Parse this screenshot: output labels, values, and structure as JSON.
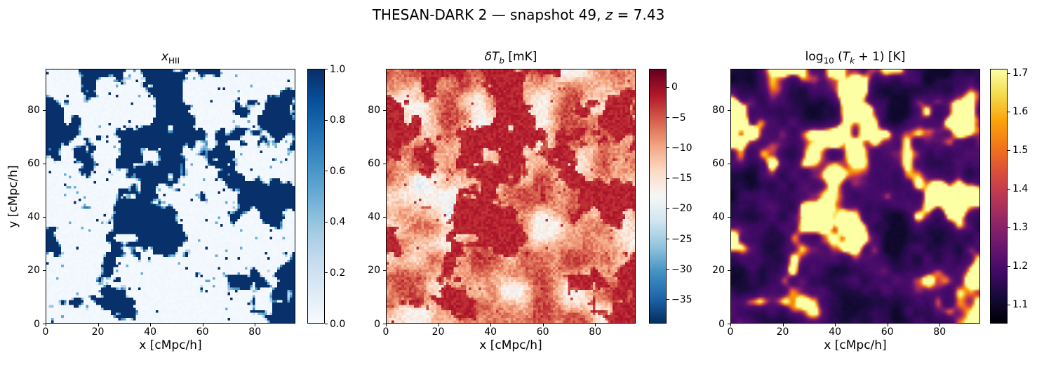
{
  "figure": {
    "suptitle_text": "THESAN-DARK 2 — snapshot 49, z = 7.43",
    "suptitle_segments": [
      {
        "t": "THESAN-DARK 2 — snapshot 49, "
      },
      {
        "t": "z",
        "i": true
      },
      {
        "t": " = 7.43"
      }
    ],
    "background": "#ffffff",
    "text_color": "#000000"
  },
  "noise": {
    "seed": 77031,
    "grid": 100,
    "octavesA": [
      6,
      12,
      24,
      48
    ],
    "octavesB": [
      8,
      16
    ],
    "octavesC": [
      7,
      14
    ]
  },
  "chart_data": [
    {
      "type": "heatmap",
      "id": "xhii",
      "title_text": "x_HII",
      "title_segments": [
        {
          "t": "x",
          "i": true
        },
        {
          "t": "HII",
          "sub": true
        }
      ],
      "xlabel": "x [cMpc/h]",
      "ylabel": "y [cMpc/h]",
      "xlim": [
        0,
        95.5
      ],
      "ylim": [
        0,
        95.5
      ],
      "xticks": [
        0,
        20,
        40,
        60,
        80
      ],
      "yticks": [
        0,
        20,
        40,
        60,
        80
      ],
      "vmin": 0.0,
      "vmax": 1.0,
      "colorbar_ticks": [
        {
          "v": 0.0,
          "label": "0.0"
        },
        {
          "v": 0.2,
          "label": "0.2"
        },
        {
          "v": 0.4,
          "label": "0.4"
        },
        {
          "v": 0.6,
          "label": "0.6"
        },
        {
          "v": 0.8,
          "label": "0.8"
        },
        {
          "v": 1.0,
          "label": "1.0"
        }
      ],
      "colormap": {
        "name": "Blues",
        "stops": [
          "#f7fbff",
          "#deebf7",
          "#c6dbef",
          "#9ecae1",
          "#6baed6",
          "#4292c6",
          "#2171b5",
          "#08519c",
          "#08306b"
        ]
      },
      "pixelated": true,
      "field": {
        "kind": "ionization"
      },
      "description": "Ionized hydrogen fraction slice: dark navy ionized bubbles (x_HII ≈ 1) clustered in blobs on a near-white neutral background, with light-blue partially ionized pixels at bubble edges."
    },
    {
      "type": "heatmap",
      "id": "dTb",
      "title_text": "δT_b [mK]",
      "title_segments": [
        {
          "t": "δT",
          "i": true
        },
        {
          "t": "b",
          "i": true,
          "sub": true
        },
        {
          "t": " [mK]"
        }
      ],
      "xlabel": "x [cMpc/h]",
      "ylabel": "",
      "xlim": [
        0,
        95.5
      ],
      "ylim": [
        0,
        95.5
      ],
      "xticks": [
        0,
        20,
        40,
        60,
        80
      ],
      "yticks": [
        0,
        20,
        40,
        60,
        80
      ],
      "vmin": -39,
      "vmax": 3,
      "colorbar_ticks": [
        {
          "v": 0,
          "label": "0"
        },
        {
          "v": -5,
          "label": "−5"
        },
        {
          "v": -10,
          "label": "−10"
        },
        {
          "v": -15,
          "label": "−15"
        },
        {
          "v": -20,
          "label": "−20"
        },
        {
          "v": -25,
          "label": "−25"
        },
        {
          "v": -30,
          "label": "−30"
        },
        {
          "v": -35,
          "label": "−35"
        }
      ],
      "colormap": {
        "name": "RdBu_r",
        "stops": [
          "#053061",
          "#2166ac",
          "#4393c3",
          "#92c5de",
          "#d1e5f0",
          "#f7f7f7",
          "#fddbc7",
          "#f4a582",
          "#d6604d",
          "#b2182b",
          "#67001f"
        ]
      },
      "pixelated": true,
      "field": {
        "kind": "brightness"
      },
      "description": "21-cm brightness temperature slice: mottled salmon/red background around −10 to −15 mK, dark-red patches (δT_b ≈ 0) coincident with ionized bubbles, scattered pale-blue cold pixels near −20 to −30 mK."
    },
    {
      "type": "heatmap",
      "id": "Tk",
      "title_text": "log10 (T_k + 1) [K]",
      "title_segments": [
        {
          "t": "log"
        },
        {
          "t": "10",
          "sub": true
        },
        {
          "t": " ("
        },
        {
          "t": "T",
          "i": true
        },
        {
          "t": "k",
          "i": true,
          "sub": true
        },
        {
          "t": " + 1) [K]"
        }
      ],
      "xlabel": "x [cMpc/h]",
      "ylabel": "",
      "xlim": [
        0,
        95.5
      ],
      "ylim": [
        0,
        95.5
      ],
      "xticks": [
        0,
        20,
        40,
        60,
        80
      ],
      "yticks": [
        0,
        20,
        40,
        60,
        80
      ],
      "vmin": 1.05,
      "vmax": 1.71,
      "colorbar_ticks": [
        {
          "v": 1.1,
          "label": "1.1"
        },
        {
          "v": 1.2,
          "label": "1.2"
        },
        {
          "v": 1.3,
          "label": "1.3"
        },
        {
          "v": 1.4,
          "label": "1.4"
        },
        {
          "v": 1.5,
          "label": "1.5"
        },
        {
          "v": 1.6,
          "label": "1.6"
        },
        {
          "v": 1.7,
          "label": "1.7"
        }
      ],
      "colormap": {
        "name": "inferno",
        "stops": [
          "#000004",
          "#160b39",
          "#420a68",
          "#6a176e",
          "#932667",
          "#bc3754",
          "#dd513a",
          "#f37819",
          "#fca50a",
          "#f5db4c",
          "#fcffa4"
        ]
      },
      "pixelated": false,
      "field": {
        "kind": "temperature"
      },
      "description": "Gas kinetic temperature slice (log scale): smooth dark purple/black field around 1.1–1.3 with bright orange-yellow heated peaks up to ~1.7 at the locations of the ionized bubbles."
    }
  ]
}
